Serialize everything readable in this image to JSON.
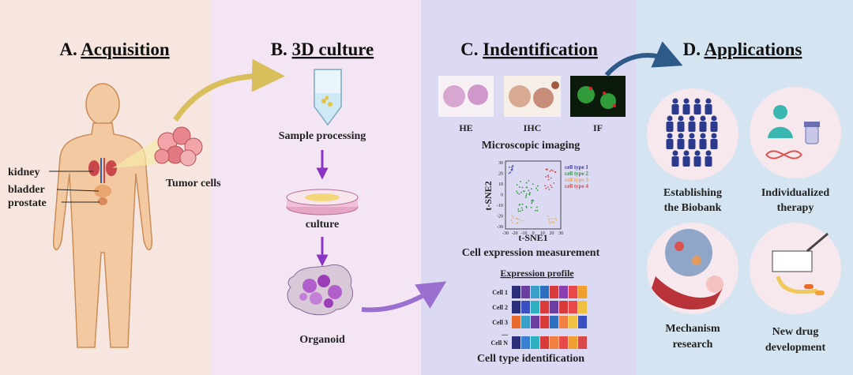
{
  "panels": [
    {
      "letter": "A.",
      "title": "Acquisition",
      "labels": [
        "kidney",
        "bladder",
        "prostate",
        "Tumor cells"
      ]
    },
    {
      "letter": "B.",
      "title": "3D culture",
      "labels": [
        "Sample processing",
        "culture",
        "Organoid"
      ]
    },
    {
      "letter": "C.",
      "title": "Indentification",
      "image_labels": [
        "HE",
        "IHC",
        "IF"
      ],
      "imaging_caption": "Microscopic imaging",
      "tsne": {
        "y_label": "t-SNE2",
        "x_label": "t-SNE1",
        "yticks": [
          "30",
          "20",
          "10",
          "0",
          "-10",
          "-20",
          "-30"
        ],
        "xticks": [
          "-30",
          "-20",
          "-10",
          "0",
          "10",
          "20",
          "30"
        ],
        "legend": [
          "cell type 1",
          "cell type 2",
          "cell type 3",
          "cell type 4"
        ]
      },
      "tsne_caption": "Cell expression measurement",
      "heatmap": {
        "title": "Expression profile",
        "rows": [
          "Cell 1",
          "Cell 2",
          "Cell 3",
          "....",
          "Cell N"
        ]
      },
      "heatmap_caption": "Cell type identification"
    },
    {
      "letter": "D.",
      "title": "Applications",
      "items": [
        [
          "Establishing",
          "the Biobank"
        ],
        [
          "Individualized",
          "therapy"
        ],
        [
          "Mechanism",
          "research"
        ],
        [
          "New drug",
          "development"
        ]
      ]
    }
  ]
}
